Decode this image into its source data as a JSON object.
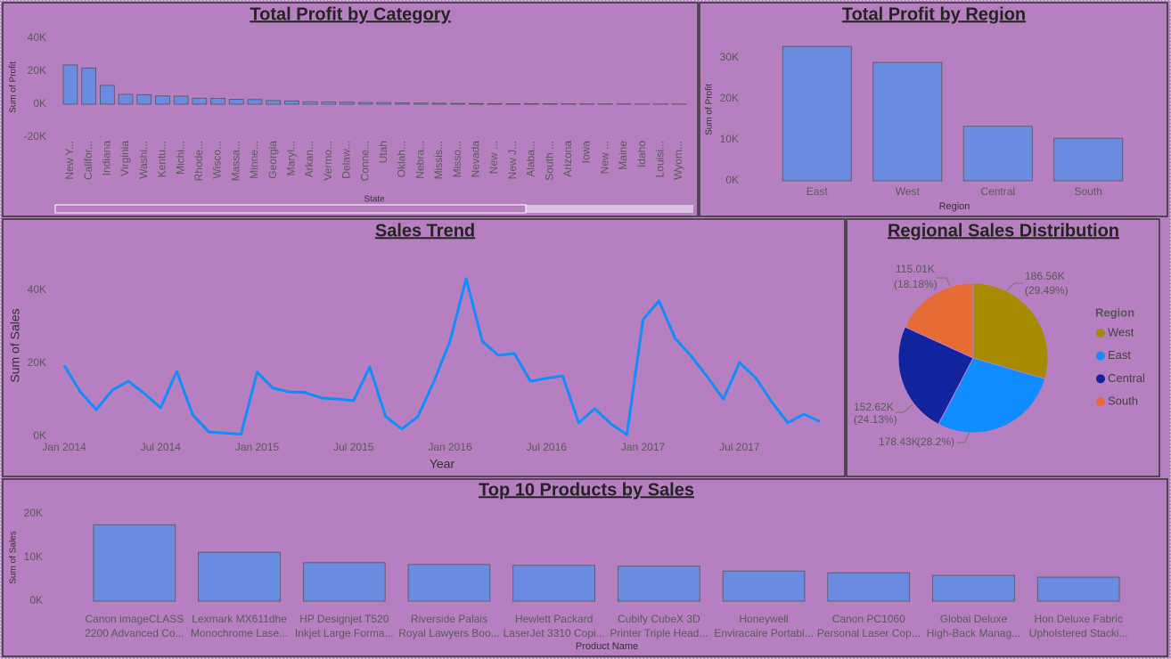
{
  "chart_data": [
    {
      "type": "bar",
      "title": "Total Profit by Category",
      "x_label": "State",
      "y_label": "Sum of Profit",
      "categories": [
        "New Y...",
        "Califor...",
        "Indiana",
        "Virginia",
        "Washi...",
        "Kentu...",
        "Michi...",
        "Rhode...",
        "Wisco...",
        "Massa...",
        "Minne...",
        "Georgia",
        "Maryl...",
        "Arkan...",
        "Vermo...",
        "Delaw...",
        "Conne...",
        "Utah",
        "Oklah...",
        "Nebra...",
        "Missis...",
        "Misso...",
        "Nevada",
        "New ...",
        "New J...",
        "Alaba...",
        "South ...",
        "Arizona",
        "Iowa",
        "New ...",
        "Maine",
        "Idaho",
        "Louisi...",
        "Wyom..."
      ],
      "values": [
        23800,
        22000,
        11400,
        6000,
        5800,
        5000,
        4900,
        3700,
        3500,
        3000,
        2800,
        2200,
        2000,
        1500,
        1300,
        1200,
        1000,
        1000,
        800,
        700,
        600,
        500,
        400,
        300,
        300,
        300,
        300,
        250,
        200,
        200,
        150,
        100,
        100,
        100
      ],
      "color": "#6a8be0",
      "ylim": [
        -20000,
        40000
      ],
      "yticks": [
        {
          "value": -20000,
          "label": "-20K"
        },
        {
          "value": 0,
          "label": "0K"
        },
        {
          "value": 20000,
          "label": "20K"
        },
        {
          "value": 40000,
          "label": "40K"
        }
      ]
    },
    {
      "type": "bar",
      "title": "Total Profit by Region",
      "x_label": "Region",
      "y_label": "Sum of Profit",
      "categories": [
        "East",
        "West",
        "Central",
        "South"
      ],
      "values": [
        32800,
        28900,
        13300,
        10400
      ],
      "color": "#6a8be0",
      "ylim": [
        0,
        35000
      ],
      "yticks": [
        {
          "value": 0,
          "label": "0K"
        },
        {
          "value": 10000,
          "label": "10K"
        },
        {
          "value": 20000,
          "label": "20K"
        },
        {
          "value": 30000,
          "label": "30K"
        }
      ]
    },
    {
      "type": "line",
      "title": "Sales Trend",
      "x_label": "Year",
      "y_label": "Sum of Sales",
      "x": [
        "2014-01",
        "2014-02",
        "2014-03",
        "2014-04",
        "2014-05",
        "2014-06",
        "2014-07",
        "2014-08",
        "2014-09",
        "2014-10",
        "2014-11",
        "2014-12",
        "2015-01",
        "2015-02",
        "2015-03",
        "2015-04",
        "2015-05",
        "2015-06",
        "2015-07",
        "2015-08",
        "2015-09",
        "2015-10",
        "2015-11",
        "2015-12",
        "2016-01",
        "2016-02",
        "2016-03",
        "2016-04",
        "2016-05",
        "2016-06",
        "2016-07",
        "2016-08",
        "2016-09",
        "2016-10",
        "2016-11",
        "2016-12",
        "2017-01",
        "2017-02",
        "2017-03",
        "2017-04",
        "2017-05",
        "2017-06",
        "2017-07",
        "2017-08",
        "2017-09",
        "2017-10",
        "2017-11",
        "2017-12"
      ],
      "values": [
        19500,
        12200,
        7300,
        12700,
        15100,
        11700,
        7800,
        17800,
        5900,
        1200,
        900,
        600,
        17600,
        13200,
        12200,
        12000,
        10500,
        10200,
        9800,
        19000,
        5400,
        2000,
        5400,
        15100,
        26100,
        43200,
        26100,
        22200,
        22700,
        15100,
        15900,
        16600,
        3700,
        7600,
        3400,
        500,
        32000,
        37100,
        26800,
        22000,
        16300,
        10200,
        20200,
        16100,
        9500,
        3700,
        6100,
        4100
      ],
      "color": "#118dff",
      "ylim": [
        0,
        45000
      ],
      "yticks": [
        {
          "value": 0,
          "label": "0K"
        },
        {
          "value": 20000,
          "label": "20K"
        },
        {
          "value": 40000,
          "label": "40K"
        }
      ],
      "xticks": [
        {
          "value": "2014-01",
          "label": "Jan 2014"
        },
        {
          "value": "2014-07",
          "label": "Jul 2014"
        },
        {
          "value": "2015-01",
          "label": "Jan 2015"
        },
        {
          "value": "2015-07",
          "label": "Jul 2015"
        },
        {
          "value": "2016-01",
          "label": "Jan 2016"
        },
        {
          "value": "2016-07",
          "label": "Jul 2016"
        },
        {
          "value": "2017-01",
          "label": "Jan 2017"
        },
        {
          "value": "2017-07",
          "label": "Jul 2017"
        }
      ]
    },
    {
      "type": "pie",
      "title": "Regional Sales Distribution",
      "legend_title": "Region",
      "categories": [
        "West",
        "East",
        "Central",
        "South"
      ],
      "values": [
        186560,
        178430,
        152620,
        115010
      ],
      "value_labels": [
        "186.56K",
        "178.43K",
        "152.62K",
        "115.01K"
      ],
      "percent_labels": [
        "(29.49%)",
        "(28.2%)",
        "(24.13%)",
        "(18.18%)"
      ],
      "colors": [
        "#a68a00",
        "#118dff",
        "#12239e",
        "#e66c37"
      ],
      "legend": "right"
    },
    {
      "type": "bar",
      "title": "Top 10 Products by Sales",
      "x_label": "Product Name",
      "y_label": "Sum of Sales",
      "categories": [
        [
          "Canon imageCLASS",
          "2200 Advanced Co..."
        ],
        [
          "Lexmark MX611dhe",
          "Monochrome Lase..."
        ],
        [
          "HP Designjet T520",
          "Inkjet Large Forma..."
        ],
        [
          "Riverside Palais",
          "Royal Lawyers Boo..."
        ],
        [
          "Hewlett Packard",
          "LaserJet 3310 Copi..."
        ],
        [
          "Cubify CubeX 3D",
          "Printer Triple Head..."
        ],
        [
          "Honeywell",
          "Enviracaire Portabl..."
        ],
        [
          "Canon PC1060",
          "Personal Laser Cop..."
        ],
        [
          "Global Deluxe",
          "High-Back Manag..."
        ],
        [
          "Hon Deluxe Fabric",
          "Upholstered Stacki..."
        ]
      ],
      "values": [
        17500,
        11200,
        8800,
        8400,
        8200,
        8000,
        6900,
        6500,
        5900,
        5500
      ],
      "color": "#6a8be0",
      "ylim": [
        0,
        20000
      ],
      "yticks": [
        {
          "value": 0,
          "label": "0K"
        },
        {
          "value": 10000,
          "label": "10K"
        },
        {
          "value": 20000,
          "label": "20K"
        }
      ]
    }
  ]
}
